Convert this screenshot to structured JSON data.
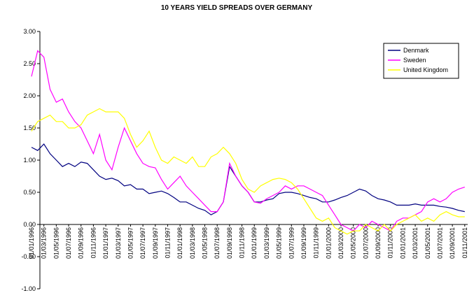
{
  "chart_data": {
    "type": "line",
    "title": "10 YEARS YIELD SPREADS OVER GERMANY",
    "categories": [
      "01/01/1996",
      null,
      "01/03/1996",
      null,
      "01/05/1996",
      null,
      "01/07/1996",
      null,
      "01/09/1996",
      null,
      "01/11/1996",
      null,
      "01/01/1997",
      null,
      "01/03/1997",
      null,
      "01/05/1997",
      null,
      "01/07/1997",
      null,
      "01/09/1997",
      null,
      "01/11/1997",
      null,
      "01/01/1998",
      null,
      "01/03/1998",
      null,
      "01/05/1998",
      null,
      "01/07/1998",
      null,
      "01/09/1998",
      null,
      "01/11/1998",
      null,
      "01/01/1999",
      null,
      "01/03/1999",
      null,
      "01/05/1999",
      null,
      "01/07/1999",
      null,
      "01/09/1999",
      null,
      "01/11/1999",
      null,
      "01/01/2000",
      null,
      "01/03/2000",
      null,
      "01/05/2000",
      null,
      "01/07/2000",
      null,
      "01/09/2000",
      null,
      "01/11/2000",
      null,
      "01/01/2001",
      null,
      "01/03/2001",
      null,
      "01/05/2001",
      null,
      "01/07/2001",
      null,
      "01/09/2001",
      null,
      "01/11/2001"
    ],
    "series": [
      {
        "name": "Denmark",
        "color": "#000080",
        "values": [
          1.2,
          1.15,
          1.25,
          1.1,
          1.0,
          0.9,
          0.95,
          0.9,
          0.97,
          0.95,
          0.85,
          0.75,
          0.7,
          0.72,
          0.68,
          0.6,
          0.62,
          0.55,
          0.55,
          0.48,
          0.5,
          0.52,
          0.48,
          0.42,
          0.35,
          0.35,
          0.3,
          0.25,
          0.22,
          0.15,
          0.2,
          0.35,
          0.9,
          0.75,
          0.6,
          0.5,
          0.35,
          0.35,
          0.38,
          0.4,
          0.48,
          0.5,
          0.5,
          0.48,
          0.45,
          0.42,
          0.4,
          0.35,
          0.35,
          0.38,
          0.42,
          0.45,
          0.5,
          0.55,
          0.52,
          0.45,
          0.4,
          0.38,
          0.35,
          0.3,
          0.3,
          0.3,
          0.32,
          0.3,
          0.3,
          0.3,
          0.28,
          0.27,
          0.25,
          0.22,
          0.2
        ]
      },
      {
        "name": "Sweden",
        "color": "#ff00ff",
        "values": [
          2.3,
          2.7,
          2.6,
          2.1,
          1.9,
          1.95,
          1.75,
          1.6,
          1.5,
          1.3,
          1.1,
          1.4,
          1.0,
          0.85,
          1.2,
          1.5,
          1.3,
          1.1,
          0.95,
          0.9,
          0.88,
          0.7,
          0.55,
          0.65,
          0.75,
          0.6,
          0.5,
          0.4,
          0.3,
          0.2,
          0.2,
          0.35,
          0.95,
          0.75,
          0.6,
          0.5,
          0.35,
          0.33,
          0.4,
          0.45,
          0.5,
          0.6,
          0.55,
          0.6,
          0.6,
          0.55,
          0.5,
          0.45,
          0.3,
          0.15,
          0.0,
          -0.05,
          -0.1,
          0.0,
          -0.05,
          0.05,
          0.0,
          -0.05,
          -0.1,
          0.05,
          0.1,
          0.1,
          0.15,
          0.2,
          0.35,
          0.4,
          0.35,
          0.4,
          0.5,
          0.55,
          0.58
        ]
      },
      {
        "name": "United Kingdom",
        "color": "#ffff00",
        "values": [
          1.45,
          1.6,
          1.65,
          1.7,
          1.6,
          1.6,
          1.5,
          1.5,
          1.55,
          1.7,
          1.75,
          1.8,
          1.75,
          1.75,
          1.75,
          1.65,
          1.4,
          1.2,
          1.3,
          1.45,
          1.2,
          1.0,
          0.95,
          1.05,
          1.0,
          0.95,
          1.05,
          0.9,
          0.9,
          1.05,
          1.1,
          1.2,
          1.1,
          0.95,
          0.7,
          0.55,
          0.5,
          0.6,
          0.65,
          0.7,
          0.72,
          0.7,
          0.65,
          0.55,
          0.4,
          0.25,
          0.1,
          0.05,
          0.1,
          -0.05,
          -0.1,
          -0.15,
          -0.1,
          -0.1,
          0.0,
          -0.05,
          -0.1,
          0.0,
          -0.1,
          0.0,
          0.05,
          0.1,
          0.15,
          0.05,
          0.1,
          0.05,
          0.15,
          0.2,
          0.15,
          0.12,
          0.12
        ]
      }
    ],
    "ylim": [
      -1,
      3
    ],
    "yticks": [
      {
        "value": -1,
        "label": "-1.00"
      },
      {
        "value": -0.5,
        "label": "-0.50"
      },
      {
        "value": 0,
        "label": "0.00"
      },
      {
        "value": 0.5,
        "label": "0.50"
      },
      {
        "value": 1,
        "label": "1.00"
      },
      {
        "value": 1.5,
        "label": "1.50"
      },
      {
        "value": 2,
        "label": "2.00"
      },
      {
        "value": 2.5,
        "label": "2.50"
      },
      {
        "value": 3,
        "label": "3.00"
      }
    ],
    "grid": false,
    "legend": "top-right"
  }
}
